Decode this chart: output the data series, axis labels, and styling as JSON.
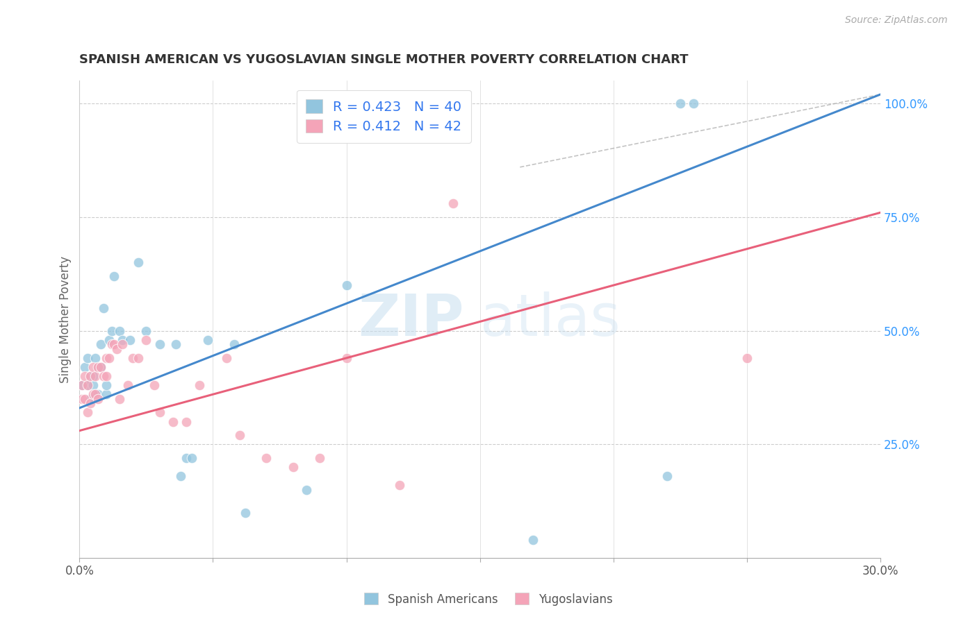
{
  "title": "SPANISH AMERICAN VS YUGOSLAVIAN SINGLE MOTHER POVERTY CORRELATION CHART",
  "source": "Source: ZipAtlas.com",
  "ylabel": "Single Mother Poverty",
  "right_yticks": [
    "25.0%",
    "50.0%",
    "75.0%",
    "100.0%"
  ],
  "right_ytick_vals": [
    0.25,
    0.5,
    0.75,
    1.0
  ],
  "watermark_zip": "ZIP",
  "watermark_atlas": "atlas",
  "legend_blue_r": "R = 0.423",
  "legend_blue_n": "N = 40",
  "legend_pink_r": "R = 0.412",
  "legend_pink_n": "N = 42",
  "blue_color": "#92c5de",
  "pink_color": "#f4a4b8",
  "line_blue": "#4488cc",
  "line_pink": "#e8607a",
  "legend_text_color": "#3377ee",
  "right_axis_color": "#3399ff",
  "spanish_x": [
    0.001,
    0.002,
    0.003,
    0.003,
    0.004,
    0.004,
    0.005,
    0.005,
    0.005,
    0.006,
    0.006,
    0.007,
    0.007,
    0.008,
    0.008,
    0.009,
    0.01,
    0.01,
    0.011,
    0.012,
    0.013,
    0.015,
    0.016,
    0.019,
    0.022,
    0.025,
    0.03,
    0.036,
    0.038,
    0.04,
    0.042,
    0.048,
    0.058,
    0.062,
    0.085,
    0.1,
    0.17,
    0.22,
    0.225,
    0.23
  ],
  "spanish_y": [
    0.38,
    0.42,
    0.38,
    0.44,
    0.35,
    0.4,
    0.35,
    0.4,
    0.38,
    0.36,
    0.44,
    0.36,
    0.42,
    0.42,
    0.47,
    0.55,
    0.36,
    0.38,
    0.48,
    0.5,
    0.62,
    0.5,
    0.48,
    0.48,
    0.65,
    0.5,
    0.47,
    0.47,
    0.18,
    0.22,
    0.22,
    0.48,
    0.47,
    0.1,
    0.15,
    0.6,
    0.04,
    0.18,
    1.0,
    1.0
  ],
  "yugoslav_x": [
    0.001,
    0.001,
    0.002,
    0.002,
    0.003,
    0.003,
    0.004,
    0.004,
    0.005,
    0.005,
    0.006,
    0.006,
    0.007,
    0.007,
    0.008,
    0.009,
    0.01,
    0.01,
    0.011,
    0.012,
    0.013,
    0.014,
    0.015,
    0.016,
    0.018,
    0.02,
    0.022,
    0.025,
    0.028,
    0.03,
    0.035,
    0.04,
    0.045,
    0.055,
    0.06,
    0.07,
    0.08,
    0.09,
    0.1,
    0.12,
    0.14,
    0.25
  ],
  "yugoslav_y": [
    0.35,
    0.38,
    0.35,
    0.4,
    0.32,
    0.38,
    0.34,
    0.4,
    0.36,
    0.42,
    0.36,
    0.4,
    0.35,
    0.42,
    0.42,
    0.4,
    0.4,
    0.44,
    0.44,
    0.47,
    0.47,
    0.46,
    0.35,
    0.47,
    0.38,
    0.44,
    0.44,
    0.48,
    0.38,
    0.32,
    0.3,
    0.3,
    0.38,
    0.44,
    0.27,
    0.22,
    0.2,
    0.22,
    0.44,
    0.16,
    0.78,
    0.44
  ],
  "xlim": [
    0.0,
    0.3
  ],
  "ylim": [
    0.0,
    1.05
  ],
  "blue_line_pts": [
    [
      0.0,
      0.33
    ],
    [
      0.3,
      1.02
    ]
  ],
  "pink_line_pts": [
    [
      0.0,
      0.28
    ],
    [
      0.3,
      0.76
    ]
  ],
  "diag_line_pts": [
    [
      0.165,
      0.86
    ],
    [
      0.3,
      1.02
    ]
  ]
}
